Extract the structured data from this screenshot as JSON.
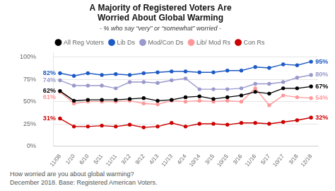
{
  "chart_data": {
    "type": "line",
    "title": [
      "A Majority of Registered Voters Are",
      "Worried About Global Warming"
    ],
    "subtitle": "- % who say “very” or “somewhat” worried -",
    "footnotes": [
      "How worried are you about global warming?",
      "December 2018. Base: Registered American Voters."
    ],
    "categories": [
      "11/08",
      "1/10",
      "6/10",
      "5/11",
      "11/11",
      "3/12",
      "9/12",
      "4/13",
      "11/13",
      "4/14",
      "10/14",
      "3/15",
      "10/15",
      "3/16",
      "11/16",
      "5/17",
      "10/17",
      "3/18",
      "12/18"
    ],
    "series": [
      {
        "name": "All Reg Voters",
        "color": "#000000",
        "marker": "circle",
        "values": [
          62,
          51,
          52,
          52,
          52,
          53,
          54,
          51,
          52,
          55,
          56,
          53,
          55,
          57,
          61,
          59,
          65,
          65,
          67
        ]
      },
      {
        "name": "Lib Ds",
        "color": "#1f5bc4",
        "marker": "circle",
        "values": [
          82,
          79,
          82,
          80,
          81,
          80,
          82,
          83,
          84,
          84,
          83,
          83,
          85,
          85,
          89,
          88,
          92,
          91,
          95
        ]
      },
      {
        "name": "Mod/Con Ds",
        "color": "#9999cc",
        "marker": "circle",
        "values": [
          74,
          68,
          68,
          68,
          65,
          72,
          72,
          71,
          74,
          76,
          64,
          64,
          64,
          65,
          70,
          70,
          72,
          77,
          80
        ]
      },
      {
        "name": "Lib/ Mod Rs",
        "color": "#ff9999",
        "marker": "circle",
        "values": [
          61,
          48,
          50,
          50,
          50,
          51,
          48,
          47,
          51,
          50,
          51,
          50,
          51,
          50,
          65,
          46,
          57,
          55,
          54
        ]
      },
      {
        "name": "Con Rs",
        "color": "#cc0000",
        "marker": "circle",
        "values": [
          31,
          22,
          22,
          23,
          22,
          24,
          21,
          22,
          26,
          22,
          25,
          25,
          24,
          26,
          26,
          25,
          27,
          29,
          32
        ]
      }
    ],
    "annotations": [
      {
        "text": "62%",
        "x": "11/08",
        "y": 62,
        "series": "All Reg Voters"
      },
      {
        "text": "67%",
        "x": "12/18",
        "y": 67,
        "series": "All Reg Voters"
      },
      {
        "text": "82%",
        "x": "11/08",
        "y": 82,
        "series": "Lib Ds"
      },
      {
        "text": "95%",
        "x": "12/18",
        "y": 95,
        "series": "Lib Ds"
      },
      {
        "text": "74%",
        "x": "11/08",
        "y": 74,
        "series": "Mod/Con Ds"
      },
      {
        "text": "80%",
        "x": "12/18",
        "y": 80,
        "series": "Mod/Con Ds"
      },
      {
        "text": "61%",
        "x": "11/08",
        "y": 61,
        "series": "Lib/ Mod Rs"
      },
      {
        "text": "54%",
        "x": "12/18",
        "y": 54,
        "series": "Lib/ Mod Rs"
      },
      {
        "text": "31%",
        "x": "11/08",
        "y": 31,
        "series": "Con Rs"
      },
      {
        "text": "32%",
        "x": "12/18",
        "y": 32,
        "series": "Con Rs"
      }
    ],
    "ylim": [
      0,
      105
    ],
    "yticks": [
      {
        "value": 0,
        "label": "0%"
      },
      {
        "value": 25,
        "label": "25%"
      },
      {
        "value": 50,
        "label": "50%"
      },
      {
        "value": 75,
        "label": "75%"
      },
      {
        "value": 100,
        "label": "100%"
      }
    ],
    "grid": "y",
    "legend": "top"
  }
}
